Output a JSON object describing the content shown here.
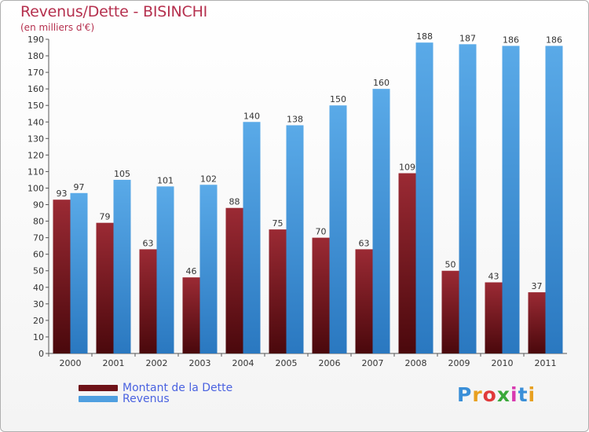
{
  "header": {
    "title": "Revenus/Dette - BISINCHI",
    "subtitle": "(en milliers d'€)"
  },
  "legend": {
    "items": [
      {
        "label": "Montant de la Dette",
        "color": "#6e1218"
      },
      {
        "label": "Revenus",
        "color": "#4f9fe0"
      }
    ]
  },
  "branding": {
    "logo_text": "Proxiti"
  },
  "chart_data": {
    "type": "bar",
    "categories": [
      "2000",
      "2001",
      "2002",
      "2003",
      "2004",
      "2005",
      "2006",
      "2007",
      "2008",
      "2009",
      "2010",
      "2011"
    ],
    "series": [
      {
        "name": "Montant de la Dette",
        "color": "#7a1a22",
        "values": [
          93,
          79,
          63,
          46,
          88,
          75,
          70,
          63,
          109,
          50,
          43,
          37
        ]
      },
      {
        "name": "Revenus",
        "color": "#4f9fe0",
        "values": [
          97,
          105,
          101,
          102,
          140,
          138,
          150,
          160,
          188,
          187,
          186,
          186
        ]
      }
    ],
    "ylim": [
      0,
      190
    ],
    "ytick_step": 10,
    "grid": false,
    "legend_position": "bottom-left"
  }
}
